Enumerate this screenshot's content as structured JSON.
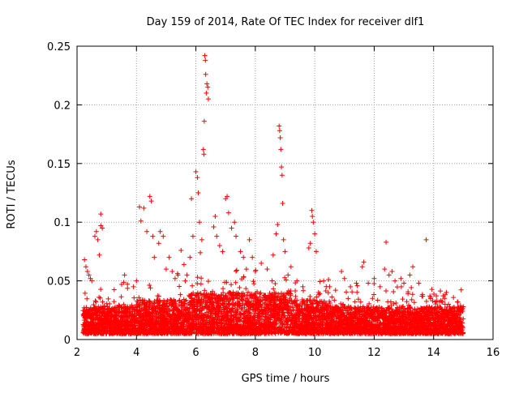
{
  "chart_data": {
    "type": "scatter",
    "title": "Day 159 of 2014, Rate Of TEC Index for receiver dlf1",
    "xlabel": "GPS time / hours",
    "ylabel": "ROTI / TECUs",
    "xlim": [
      2,
      16
    ],
    "ylim": [
      0,
      0.25
    ],
    "xticks": [
      2,
      4,
      6,
      8,
      10,
      12,
      14,
      16
    ],
    "yticks": [
      0,
      0.05,
      0.1,
      0.15,
      0.2,
      0.25
    ],
    "xtick_labels": [
      "2",
      "4",
      "6",
      "8",
      "10",
      "12",
      "14",
      "16"
    ],
    "ytick_labels": [
      "0",
      "0.05",
      "0.1",
      "0.15",
      "0.2",
      "0.25"
    ],
    "grid": true,
    "marker": "+",
    "color": "#ff0000",
    "x_data_range": [
      2.2,
      15.0
    ],
    "baseline_band": [
      0.005,
      0.03
    ],
    "dense_points_estimated": 6000,
    "series": [
      {
        "name": "ROTI",
        "points": [
          [
            2.25,
            0.068
          ],
          [
            2.3,
            0.062
          ],
          [
            2.35,
            0.058
          ],
          [
            2.4,
            0.055
          ],
          [
            2.45,
            0.052
          ],
          [
            2.5,
            0.05
          ],
          [
            2.6,
            0.088
          ],
          [
            2.65,
            0.092
          ],
          [
            2.7,
            0.085
          ],
          [
            2.75,
            0.072
          ],
          [
            2.8,
            0.097
          ],
          [
            2.85,
            0.095
          ],
          [
            2.8,
            0.107
          ],
          [
            3.5,
            0.047
          ],
          [
            3.6,
            0.055
          ],
          [
            3.9,
            0.045
          ],
          [
            4.0,
            0.05
          ],
          [
            4.1,
            0.113
          ],
          [
            4.15,
            0.101
          ],
          [
            4.25,
            0.112
          ],
          [
            4.35,
            0.092
          ],
          [
            4.45,
            0.122
          ],
          [
            4.5,
            0.118
          ],
          [
            4.55,
            0.088
          ],
          [
            4.6,
            0.07
          ],
          [
            4.75,
            0.082
          ],
          [
            4.8,
            0.092
          ],
          [
            4.9,
            0.088
          ],
          [
            5.0,
            0.06
          ],
          [
            5.1,
            0.07
          ],
          [
            5.2,
            0.058
          ],
          [
            5.3,
            0.052
          ],
          [
            5.4,
            0.055
          ],
          [
            5.5,
            0.076
          ],
          [
            5.6,
            0.064
          ],
          [
            5.7,
            0.055
          ],
          [
            5.8,
            0.07
          ],
          [
            5.85,
            0.12
          ],
          [
            5.9,
            0.088
          ],
          [
            6.0,
            0.143
          ],
          [
            6.05,
            0.138
          ],
          [
            6.08,
            0.125
          ],
          [
            6.12,
            0.1
          ],
          [
            6.15,
            0.074
          ],
          [
            6.2,
            0.085
          ],
          [
            6.25,
            0.162
          ],
          [
            6.27,
            0.158
          ],
          [
            6.28,
            0.186
          ],
          [
            6.3,
            0.242
          ],
          [
            6.32,
            0.238
          ],
          [
            6.33,
            0.226
          ],
          [
            6.35,
            0.21
          ],
          [
            6.37,
            0.218
          ],
          [
            6.4,
            0.215
          ],
          [
            6.42,
            0.205
          ],
          [
            6.6,
            0.096
          ],
          [
            6.65,
            0.105
          ],
          [
            6.7,
            0.088
          ],
          [
            6.8,
            0.08
          ],
          [
            6.9,
            0.075
          ],
          [
            7.0,
            0.12
          ],
          [
            7.05,
            0.122
          ],
          [
            7.1,
            0.108
          ],
          [
            7.2,
            0.095
          ],
          [
            7.3,
            0.1
          ],
          [
            7.35,
            0.088
          ],
          [
            7.5,
            0.075
          ],
          [
            7.6,
            0.07
          ],
          [
            7.7,
            0.06
          ],
          [
            7.8,
            0.085
          ],
          [
            7.9,
            0.07
          ],
          [
            8.0,
            0.058
          ],
          [
            8.2,
            0.065
          ],
          [
            8.4,
            0.06
          ],
          [
            8.6,
            0.072
          ],
          [
            8.7,
            0.09
          ],
          [
            8.75,
            0.098
          ],
          [
            8.8,
            0.182
          ],
          [
            8.82,
            0.178
          ],
          [
            8.84,
            0.172
          ],
          [
            8.86,
            0.162
          ],
          [
            8.88,
            0.147
          ],
          [
            8.9,
            0.14
          ],
          [
            8.92,
            0.116
          ],
          [
            8.95,
            0.085
          ],
          [
            9.0,
            0.075
          ],
          [
            9.1,
            0.055
          ],
          [
            9.2,
            0.062
          ],
          [
            9.4,
            0.05
          ],
          [
            9.6,
            0.045
          ],
          [
            9.8,
            0.078
          ],
          [
            9.85,
            0.082
          ],
          [
            9.9,
            0.11
          ],
          [
            9.92,
            0.105
          ],
          [
            9.95,
            0.1
          ],
          [
            10.0,
            0.09
          ],
          [
            10.05,
            0.075
          ],
          [
            10.3,
            0.05
          ],
          [
            10.5,
            0.045
          ],
          [
            10.7,
            0.042
          ],
          [
            10.9,
            0.058
          ],
          [
            11.0,
            0.052
          ],
          [
            11.2,
            0.045
          ],
          [
            11.4,
            0.048
          ],
          [
            11.6,
            0.062
          ],
          [
            11.65,
            0.066
          ],
          [
            11.8,
            0.048
          ],
          [
            12.0,
            0.052
          ],
          [
            12.2,
            0.045
          ],
          [
            12.35,
            0.06
          ],
          [
            12.4,
            0.083
          ],
          [
            12.5,
            0.055
          ],
          [
            12.6,
            0.058
          ],
          [
            12.7,
            0.05
          ],
          [
            12.9,
            0.052
          ],
          [
            13.0,
            0.048
          ],
          [
            13.2,
            0.055
          ],
          [
            13.3,
            0.062
          ],
          [
            13.5,
            0.048
          ],
          [
            13.75,
            0.085
          ],
          [
            13.9,
            0.035
          ],
          [
            14.2,
            0.032
          ],
          [
            14.5,
            0.03
          ],
          [
            14.8,
            0.032
          ],
          [
            15.0,
            0.028
          ]
        ]
      }
    ]
  }
}
